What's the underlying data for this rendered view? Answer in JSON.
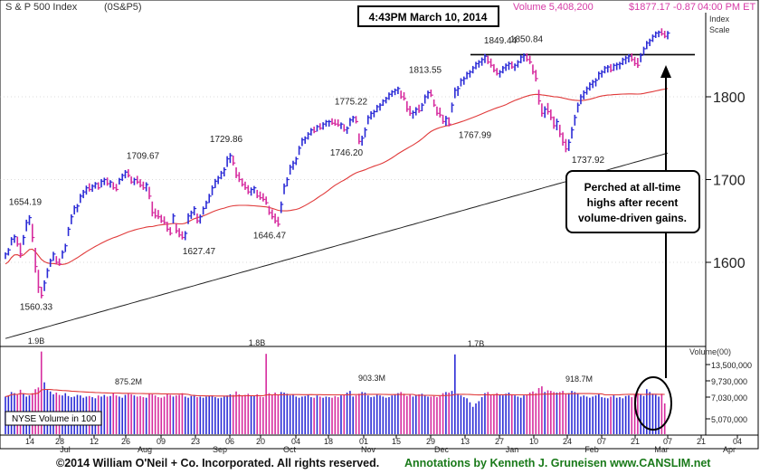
{
  "header": {
    "index_name": "S & P 500 Index",
    "symbol": "(0S&P5)",
    "timestamp": "4:43PM March 10, 2014",
    "volume": "Volume 5,408,200",
    "quote": "$1877.17 -0.87",
    "close_time": "04:00 PM ET",
    "scale_label_1": "Index",
    "scale_label_2": "Scale"
  },
  "annotation": {
    "line_1": "Perched at all-time",
    "line_2": "highs after recent",
    "line_3": "volume-driven gains."
  },
  "footer": {
    "copyright": "©2014 William O'Neil + Co. Incorporated. All rights reserved.",
    "credit": "Annotations by Kenneth J. Gruneisen www.CANSLIM.net"
  },
  "colors": {
    "up_bar": "#2b2bd6",
    "down_bar": "#d62b9e",
    "ma_50": "#e03a3a",
    "ma_200": "#222222",
    "axis": "#000000",
    "grid": "#b8b8b8"
  },
  "chart_data": {
    "type": "bar",
    "price_axis": {
      "ticks": [
        1600,
        1700,
        1800
      ],
      "ylim": [
        1520,
        1880
      ]
    },
    "volume_axis": {
      "title": "Volume(00)",
      "ticks": [
        "13,500,000",
        "9,730,000",
        "7,030,000",
        "5,070,000"
      ],
      "tick_values": [
        13500000,
        9730000,
        7030000,
        5070000
      ],
      "box_label": "NYSE Volume in 100"
    },
    "x_labels": [
      "14",
      "28",
      "12",
      "26",
      "09",
      "23",
      "06",
      "20",
      "04",
      "18",
      "01",
      "15",
      "29",
      "13",
      "27",
      "10",
      "24",
      "07",
      "21",
      "07",
      "21",
      "04"
    ],
    "month_labels": [
      "Jul",
      "Aug",
      "Sep",
      "Oct",
      "Nov",
      "Dec",
      "Jan",
      "Feb",
      "Mar",
      "Apr"
    ],
    "price_labels": [
      {
        "text": "1654.19",
        "value": 1654.19
      },
      {
        "text": "1560.33",
        "value": 1560.33
      },
      {
        "text": "1709.67",
        "value": 1709.67
      },
      {
        "text": "1627.47",
        "value": 1627.47
      },
      {
        "text": "1729.86",
        "value": 1729.86
      },
      {
        "text": "1646.47",
        "value": 1646.47
      },
      {
        "text": "1775.22",
        "value": 1775.22
      },
      {
        "text": "1746.20",
        "value": 1746.2
      },
      {
        "text": "1813.55",
        "value": 1813.55
      },
      {
        "text": "1767.99",
        "value": 1767.99
      },
      {
        "text": "1849.44",
        "value": 1849.44
      },
      {
        "text": "1850.84",
        "value": 1850.84
      },
      {
        "text": "1737.92",
        "value": 1737.92
      }
    ],
    "volume_labels": [
      "1.9B",
      "875.2M",
      "1.8B",
      "903.3M",
      "1.7B",
      "918.7M"
    ],
    "resistance_level": 1850.84,
    "series": [
      {
        "name": "",
        "kind": "price_bars",
        "closes": [
          1610,
          1615,
          1628,
          1631,
          1622,
          1610,
          1630,
          1648,
          1654,
          1630,
          1595,
          1570,
          1560,
          1575,
          1590,
          1602,
          1610,
          1600,
          1598,
          1612,
          1620,
          1640,
          1655,
          1666,
          1668,
          1680,
          1685,
          1690,
          1688,
          1692,
          1695,
          1690,
          1698,
          1700,
          1695,
          1697,
          1690,
          1688,
          1700,
          1705,
          1709,
          1705,
          1697,
          1700,
          1697,
          1693,
          1690,
          1694,
          1680,
          1660,
          1656,
          1655,
          1650,
          1648,
          1640,
          1635,
          1656,
          1638,
          1633,
          1630,
          1635,
          1656,
          1660,
          1665,
          1650,
          1655,
          1665,
          1672,
          1680,
          1690,
          1698,
          1702,
          1708,
          1712,
          1725,
          1729,
          1720,
          1705,
          1700,
          1694,
          1690,
          1685,
          1688,
          1690,
          1680,
          1678,
          1676,
          1672,
          1660,
          1655,
          1650,
          1646,
          1670,
          1692,
          1700,
          1715,
          1720,
          1725,
          1738,
          1748,
          1750,
          1755,
          1760,
          1758,
          1764,
          1762,
          1767,
          1770,
          1770,
          1768,
          1767,
          1766,
          1767,
          1760,
          1762,
          1772,
          1775,
          1770,
          1746,
          1750,
          1760,
          1775,
          1780,
          1782,
          1788,
          1790,
          1795,
          1798,
          1803,
          1806,
          1808,
          1810,
          1800,
          1798,
          1785,
          1780,
          1781,
          1785,
          1783,
          1790,
          1800,
          1805,
          1802,
          1790,
          1780,
          1778,
          1770,
          1774,
          1767,
          1790,
          1808,
          1810,
          1820,
          1822,
          1828,
          1830,
          1835,
          1840,
          1842,
          1845,
          1849,
          1842,
          1838,
          1832,
          1828,
          1830,
          1835,
          1838,
          1840,
          1836,
          1838,
          1842,
          1848,
          1850,
          1845,
          1842,
          1830,
          1822,
          1795,
          1780,
          1785,
          1782,
          1775,
          1765,
          1770,
          1755,
          1745,
          1737,
          1745,
          1760,
          1775,
          1790,
          1800,
          1805,
          1810,
          1815,
          1818,
          1820,
          1828,
          1830,
          1835,
          1836,
          1832,
          1838,
          1839,
          1840,
          1845,
          1847,
          1849,
          1845,
          1840,
          1838,
          1850,
          1858,
          1865,
          1868,
          1873,
          1877,
          1878,
          1876,
          1873,
          1877
        ],
        "spreads": [
          8,
          9,
          10,
          10,
          12,
          18,
          12,
          14,
          12,
          22,
          30,
          28,
          14,
          13,
          12,
          10,
          11,
          10,
          9,
          10,
          10,
          11,
          12,
          11,
          10,
          11,
          10,
          11,
          10,
          9,
          8,
          9,
          10,
          9,
          10,
          9,
          9,
          9,
          8,
          9,
          10,
          10,
          9,
          9,
          10,
          10,
          10,
          11,
          15,
          18,
          12,
          11,
          10,
          10,
          12,
          10,
          12,
          12,
          11,
          10,
          11,
          13,
          10,
          11,
          12,
          11,
          10,
          10,
          11,
          12,
          11,
          10,
          10,
          11,
          13,
          12,
          12,
          13,
          12,
          10,
          10,
          11,
          10,
          9,
          10,
          10,
          10,
          10,
          11,
          12,
          12,
          12,
          14,
          13,
          11,
          12,
          11,
          10,
          11,
          10,
          9,
          9,
          9,
          8,
          8,
          8,
          9,
          8,
          8,
          8,
          8,
          9,
          8,
          9,
          9,
          10,
          8,
          9,
          13,
          12,
          12,
          11,
          10,
          9,
          9,
          9,
          8,
          8,
          9,
          8,
          8,
          9,
          10,
          10,
          13,
          12,
          10,
          10,
          10,
          10,
          11,
          10,
          9,
          9,
          11,
          12,
          11,
          12,
          11,
          12,
          13,
          12,
          10,
          10,
          9,
          9,
          9,
          9,
          9,
          10,
          11,
          10,
          11,
          10,
          9,
          9,
          9,
          9,
          10,
          9,
          9,
          9,
          10,
          10,
          10,
          10,
          12,
          14,
          18,
          16,
          14,
          14,
          13,
          15,
          14,
          15,
          16,
          16,
          14,
          14,
          13,
          12,
          12,
          11,
          10,
          10,
          10,
          10,
          10,
          9,
          9,
          9,
          10,
          9,
          9,
          9,
          9,
          10,
          10,
          10,
          11,
          12,
          11,
          10,
          10,
          9,
          9,
          8,
          8,
          9,
          9
        ]
      },
      {
        "name": "",
        "kind": "volume_bars",
        "values": [
          6.6,
          6.8,
          7.4,
          7.2,
          6.9,
          7.8,
          7.1,
          6.6,
          6.8,
          7.2,
          7.9,
          8.2,
          14.5,
          9.1,
          7.8,
          7.5,
          7.0,
          7.3,
          6.9,
          6.8,
          7.2,
          6.7,
          6.5,
          6.6,
          6.9,
          6.8,
          6.4,
          6.6,
          6.7,
          6.5,
          6.3,
          6.8,
          6.6,
          6.9,
          6.6,
          6.7,
          7.2,
          6.8,
          6.6,
          6.4,
          6.9,
          7.1,
          7.0,
          6.8,
          6.6,
          6.7,
          6.5,
          6.4,
          7.1,
          7.0,
          6.8,
          6.5,
          6.4,
          6.6,
          7.0,
          6.9,
          6.6,
          6.8,
          6.9,
          7.2,
          6.6,
          6.4,
          6.7,
          6.9,
          6.5,
          6.6,
          6.4,
          6.6,
          6.7,
          6.8,
          6.5,
          6.3,
          6.4,
          6.6,
          6.8,
          7.0,
          6.9,
          7.5,
          7.0,
          6.8,
          6.9,
          7.1,
          6.7,
          6.8,
          7.0,
          6.6,
          6.5,
          14.1,
          7.2,
          6.9,
          7.3,
          6.9,
          7.4,
          7.3,
          7.1,
          6.8,
          7.0,
          6.6,
          6.4,
          6.6,
          6.7,
          6.9,
          6.5,
          6.4,
          6.8,
          6.6,
          6.4,
          6.6,
          6.5,
          6.4,
          6.7,
          6.5,
          6.8,
          6.9,
          7.3,
          7.6,
          6.6,
          6.8,
          7.1,
          7.4,
          7.3,
          6.8,
          6.5,
          6.6,
          6.9,
          6.8,
          6.6,
          6.4,
          6.5,
          6.8,
          7.0,
          7.2,
          7.4,
          7.1,
          6.7,
          6.9,
          6.6,
          6.8,
          7.0,
          7.1,
          6.8,
          6.6,
          6.6,
          6.7,
          6.5,
          6.7,
          7.2,
          7.4,
          7.3,
          7.6,
          14.0,
          7.1,
          6.8,
          6.5,
          6.3,
          5.6,
          4.8,
          5.4,
          5.8,
          6.5,
          7.2,
          7.4,
          6.9,
          7.0,
          7.2,
          6.9,
          6.8,
          7.1,
          7.3,
          7.0,
          6.8,
          6.6,
          6.4,
          6.8,
          7.0,
          7.3,
          7.5,
          7.2,
          8.1,
          8.4,
          7.4,
          7.7,
          7.6,
          7.4,
          7.3,
          7.4,
          7.6,
          7.0,
          7.2,
          7.6,
          7.4,
          7.1,
          6.6,
          6.8,
          6.6,
          6.4,
          6.6,
          6.8,
          7.0,
          6.5,
          6.4,
          6.3,
          6.6,
          6.8,
          6.4,
          6.5,
          6.3,
          6.7,
          6.8,
          6.5,
          7.0,
          7.2,
          7.0,
          6.7,
          7.9,
          7.4,
          7.1,
          6.9,
          6.6,
          7.1,
          5.4
        ],
        "scale": "millions of shares x 100, in units of 1,000,000"
      }
    ]
  }
}
